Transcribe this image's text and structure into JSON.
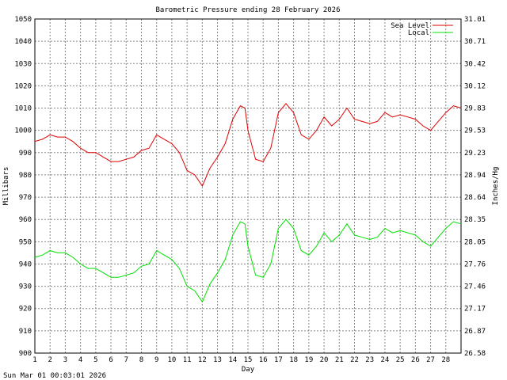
{
  "chart_data": {
    "type": "line",
    "title": "Barometric Pressure ending 28 February 2026",
    "xlabel": "Day",
    "ylabel_left": "Millibars",
    "ylabel_right": "Inches/Hg",
    "footer": "Sun Mar 01 00:03:01 2026",
    "xlim": [
      1,
      29
    ],
    "ylim": [
      900,
      1050
    ],
    "x_ticks": [
      "1",
      "2",
      "3",
      "4",
      "5",
      "6",
      "7",
      "8",
      "9",
      "10",
      "11",
      "12",
      "13",
      "14",
      "15",
      "16",
      "17",
      "18",
      "19",
      "20",
      "21",
      "22",
      "23",
      "24",
      "25",
      "26",
      "27",
      "28"
    ],
    "y_ticks_left": [
      "900",
      "910",
      "920",
      "930",
      "940",
      "950",
      "960",
      "970",
      "980",
      "990",
      "1000",
      "1010",
      "1020",
      "1030",
      "1040",
      "1050"
    ],
    "y_ticks_right": [
      "26.58",
      "26.87",
      "27.17",
      "27.46",
      "27.76",
      "28.05",
      "28.35",
      "28.64",
      "28.94",
      "29.23",
      "29.53",
      "29.83",
      "30.12",
      "30.42",
      "30.71",
      "31.01"
    ],
    "grid": true,
    "legend_position": "top-right",
    "series": [
      {
        "name": "Sea Level",
        "color": "#e00000",
        "points": [
          [
            1,
            995
          ],
          [
            1.5,
            996
          ],
          [
            2,
            998
          ],
          [
            2.5,
            997
          ],
          [
            3,
            997
          ],
          [
            3.5,
            995
          ],
          [
            4,
            992
          ],
          [
            4.5,
            990
          ],
          [
            5,
            990
          ],
          [
            5.5,
            988
          ],
          [
            6,
            986
          ],
          [
            6.5,
            986
          ],
          [
            7,
            987
          ],
          [
            7.5,
            988
          ],
          [
            8,
            991
          ],
          [
            8.5,
            992
          ],
          [
            9,
            998
          ],
          [
            9.5,
            996
          ],
          [
            10,
            994
          ],
          [
            10.5,
            990
          ],
          [
            11,
            982
          ],
          [
            11.5,
            980
          ],
          [
            12,
            975
          ],
          [
            12.5,
            983
          ],
          [
            13,
            988
          ],
          [
            13.5,
            994
          ],
          [
            14,
            1005
          ],
          [
            14.5,
            1011
          ],
          [
            14.8,
            1010
          ],
          [
            15,
            1000
          ],
          [
            15.5,
            987
          ],
          [
            16,
            986
          ],
          [
            16.5,
            992
          ],
          [
            17,
            1008
          ],
          [
            17.5,
            1012
          ],
          [
            18,
            1008
          ],
          [
            18.5,
            998
          ],
          [
            19,
            996
          ],
          [
            19.5,
            1000
          ],
          [
            20,
            1006
          ],
          [
            20.5,
            1002
          ],
          [
            21,
            1005
          ],
          [
            21.5,
            1010
          ],
          [
            22,
            1005
          ],
          [
            22.5,
            1004
          ],
          [
            23,
            1003
          ],
          [
            23.5,
            1004
          ],
          [
            24,
            1008
          ],
          [
            24.5,
            1006
          ],
          [
            25,
            1007
          ],
          [
            25.5,
            1006
          ],
          [
            26,
            1005
          ],
          [
            26.5,
            1002
          ],
          [
            27,
            1000
          ],
          [
            27.5,
            1004
          ],
          [
            28,
            1008
          ],
          [
            28.5,
            1011
          ],
          [
            29,
            1010
          ]
        ]
      },
      {
        "name": "Local",
        "color": "#00e000",
        "points": [
          [
            1,
            943
          ],
          [
            1.5,
            944
          ],
          [
            2,
            946
          ],
          [
            2.5,
            945
          ],
          [
            3,
            945
          ],
          [
            3.5,
            943
          ],
          [
            4,
            940
          ],
          [
            4.5,
            938
          ],
          [
            5,
            938
          ],
          [
            5.5,
            936
          ],
          [
            6,
            934
          ],
          [
            6.5,
            934
          ],
          [
            7,
            935
          ],
          [
            7.5,
            936
          ],
          [
            8,
            939
          ],
          [
            8.5,
            940
          ],
          [
            9,
            946
          ],
          [
            9.5,
            944
          ],
          [
            10,
            942
          ],
          [
            10.5,
            938
          ],
          [
            11,
            930
          ],
          [
            11.5,
            928
          ],
          [
            12,
            923
          ],
          [
            12.5,
            931
          ],
          [
            13,
            936
          ],
          [
            13.5,
            942
          ],
          [
            14,
            953
          ],
          [
            14.5,
            959
          ],
          [
            14.8,
            958
          ],
          [
            15,
            948
          ],
          [
            15.5,
            935
          ],
          [
            16,
            934
          ],
          [
            16.5,
            940
          ],
          [
            17,
            956
          ],
          [
            17.5,
            960
          ],
          [
            18,
            956
          ],
          [
            18.5,
            946
          ],
          [
            19,
            944
          ],
          [
            19.5,
            948
          ],
          [
            20,
            954
          ],
          [
            20.5,
            950
          ],
          [
            21,
            953
          ],
          [
            21.5,
            958
          ],
          [
            22,
            953
          ],
          [
            22.5,
            952
          ],
          [
            23,
            951
          ],
          [
            23.5,
            952
          ],
          [
            24,
            956
          ],
          [
            24.5,
            954
          ],
          [
            25,
            955
          ],
          [
            25.5,
            954
          ],
          [
            26,
            953
          ],
          [
            26.5,
            950
          ],
          [
            27,
            948
          ],
          [
            27.5,
            952
          ],
          [
            28,
            956
          ],
          [
            28.5,
            959
          ],
          [
            29,
            958
          ]
        ]
      }
    ]
  }
}
